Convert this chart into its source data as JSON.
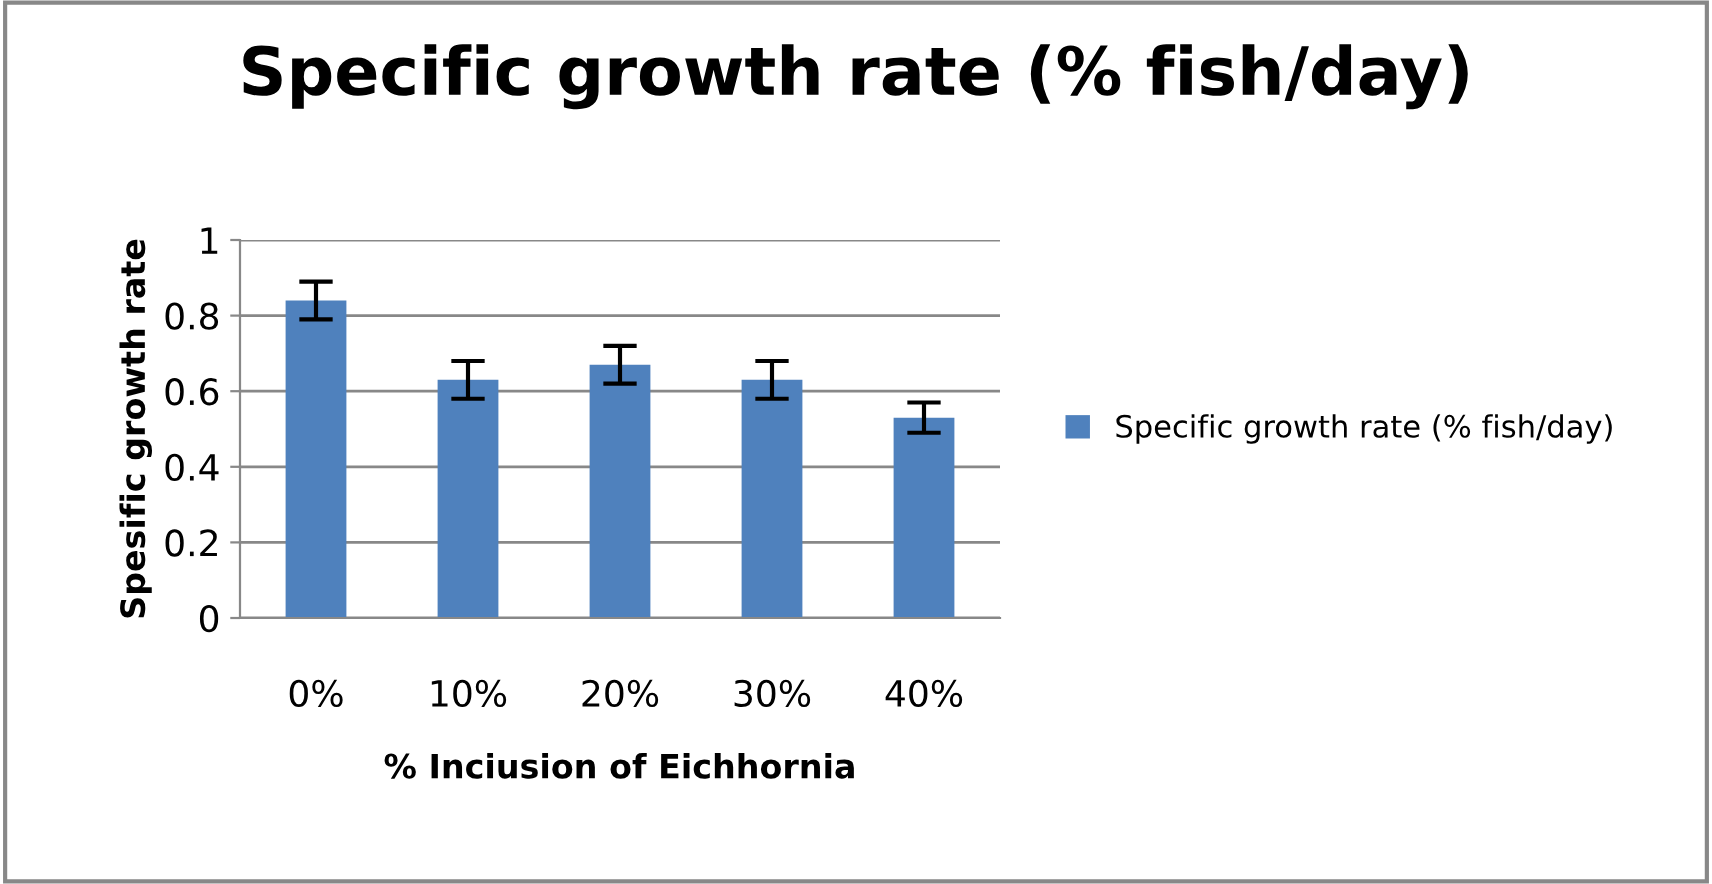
{
  "chart_data": {
    "type": "bar",
    "title": "Specific growth rate (% fish/day)",
    "xlabel": "% Inciusion of Eichhornia",
    "ylabel": "Spesific growth rate",
    "categories": [
      "0%",
      "10%",
      "20%",
      "30%",
      "40%"
    ],
    "series": [
      {
        "name": "Specific growth rate (% fish/day)",
        "color": "#4f81bd",
        "values": [
          0.84,
          0.63,
          0.67,
          0.63,
          0.53
        ],
        "errors": [
          0.05,
          0.05,
          0.05,
          0.05,
          0.04
        ]
      }
    ],
    "ylim": [
      0,
      1
    ],
    "yticks": [
      0,
      0.2,
      0.4,
      0.6,
      0.8,
      1
    ],
    "grid": "y",
    "legend": "right"
  }
}
